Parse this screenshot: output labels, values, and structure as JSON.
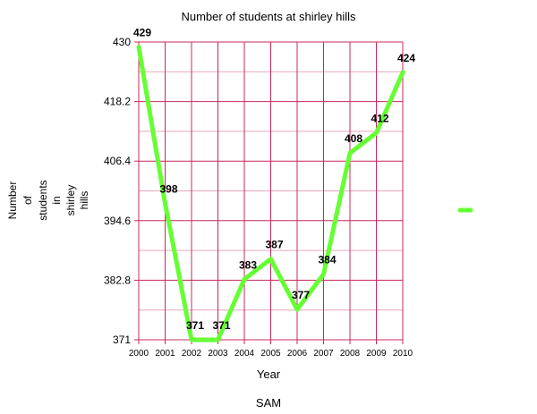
{
  "chart_data": {
    "type": "line",
    "title": "Number of students  at shirley hills",
    "xlabel": "Year",
    "ylabel_lines": [
      "Number",
      "of",
      "students",
      "in",
      "shirley",
      "hills"
    ],
    "footer": "SAM",
    "x": [
      "2000",
      "2001",
      "2002",
      "2003",
      "2004",
      "2005",
      "2006",
      "2007",
      "2008",
      "2009",
      "2010"
    ],
    "y_ticks": [
      "430",
      "418.2",
      "406.4",
      "394.6",
      "382.8",
      "371"
    ],
    "ylim": [
      371,
      430
    ],
    "grid": true,
    "legend_position": "right",
    "series": [
      {
        "values": [
          429,
          398,
          371,
          371,
          383,
          387,
          377,
          384,
          408,
          412,
          424
        ],
        "labels": [
          "429",
          "398",
          "371",
          "371",
          "383",
          "387",
          "377",
          "384",
          "408",
          "412",
          "424"
        ],
        "color": "#66ff33"
      }
    ],
    "grid_color": "#c8285a",
    "minor_grid_color": "#e8a6bd"
  }
}
